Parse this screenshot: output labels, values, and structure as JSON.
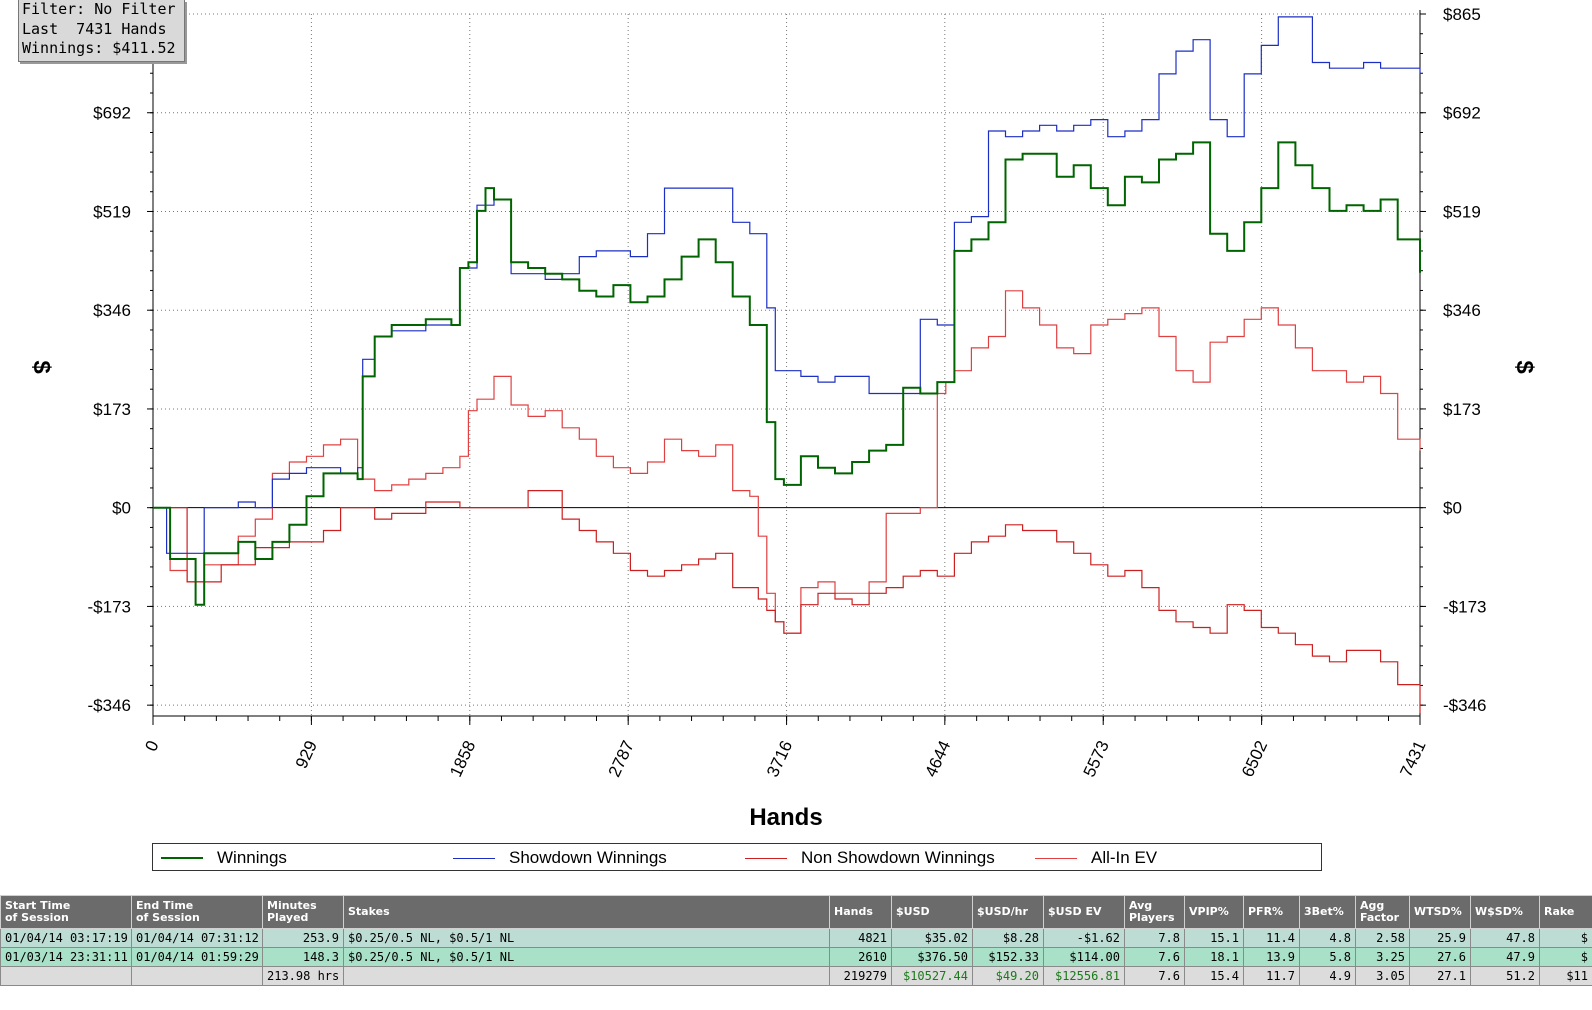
{
  "info_box": {
    "line1": "Filter: No Filter",
    "line2": "Last  7431 Hands",
    "line3": "Winnings: $411.52"
  },
  "chart_data": {
    "type": "line",
    "xlabel": "Hands",
    "ylabel": "$",
    "xlim": [
      0,
      7431
    ],
    "ylim": [
      -365,
      865
    ],
    "x_ticks": [
      "0",
      "929",
      "1858",
      "2787",
      "3716",
      "4644",
      "5573",
      "6502",
      "7431"
    ],
    "y_ticks": [
      {
        "value": 865,
        "label": "$865"
      },
      {
        "value": 692,
        "label": "$692"
      },
      {
        "value": 519,
        "label": "$519"
      },
      {
        "value": 346,
        "label": "$346"
      },
      {
        "value": 173,
        "label": "$173"
      },
      {
        "value": 0,
        "label": "$0"
      },
      {
        "value": -173,
        "label": "-$173"
      },
      {
        "value": -346,
        "label": "-$346"
      }
    ],
    "grid": true,
    "legend_position": "bottom",
    "series": [
      {
        "name": "Winnings",
        "color": "#006400",
        "x": [
          0,
          100,
          250,
          300,
          500,
          600,
          700,
          800,
          900,
          1000,
          1100,
          1200,
          1230,
          1300,
          1400,
          1600,
          1750,
          1800,
          1850,
          1900,
          1950,
          2000,
          2100,
          2200,
          2300,
          2400,
          2500,
          2600,
          2700,
          2800,
          2900,
          3000,
          3100,
          3200,
          3300,
          3400,
          3500,
          3600,
          3650,
          3700,
          3800,
          3900,
          4000,
          4100,
          4200,
          4300,
          4400,
          4500,
          4600,
          4700,
          4800,
          4900,
          5000,
          5100,
          5200,
          5300,
          5400,
          5500,
          5600,
          5700,
          5800,
          5900,
          6000,
          6100,
          6200,
          6300,
          6400,
          6500,
          6600,
          6700,
          6800,
          6900,
          7000,
          7100,
          7200,
          7300,
          7431
        ],
        "y": [
          0,
          -90,
          -170,
          -80,
          -60,
          -90,
          -60,
          -30,
          20,
          60,
          60,
          50,
          230,
          300,
          320,
          330,
          320,
          420,
          430,
          520,
          560,
          540,
          430,
          420,
          410,
          400,
          380,
          370,
          390,
          360,
          370,
          400,
          440,
          470,
          430,
          370,
          320,
          150,
          50,
          40,
          90,
          70,
          60,
          80,
          100,
          110,
          210,
          200,
          220,
          450,
          470,
          500,
          610,
          620,
          620,
          580,
          600,
          560,
          530,
          580,
          570,
          610,
          620,
          640,
          480,
          450,
          500,
          560,
          640,
          600,
          560,
          520,
          530,
          520,
          540,
          470,
          411.52
        ]
      },
      {
        "name": "Showdown Winnings",
        "color": "#1c2fc4",
        "x": [
          0,
          80,
          200,
          300,
          500,
          600,
          700,
          800,
          900,
          1000,
          1100,
          1200,
          1230,
          1300,
          1400,
          1600,
          1750,
          1800,
          1900,
          2000,
          2100,
          2200,
          2300,
          2400,
          2500,
          2600,
          2700,
          2800,
          2900,
          3000,
          3100,
          3200,
          3300,
          3400,
          3500,
          3600,
          3650,
          3700,
          3800,
          3900,
          4000,
          4100,
          4200,
          4300,
          4400,
          4500,
          4600,
          4700,
          4800,
          4900,
          5000,
          5100,
          5200,
          5300,
          5400,
          5500,
          5600,
          5700,
          5800,
          5900,
          6000,
          6100,
          6200,
          6300,
          6400,
          6500,
          6600,
          6700,
          6800,
          6900,
          7000,
          7100,
          7200,
          7300,
          7431
        ],
        "y": [
          0,
          -80,
          -80,
          0,
          10,
          0,
          50,
          60,
          70,
          70,
          60,
          70,
          260,
          300,
          310,
          320,
          320,
          420,
          530,
          540,
          410,
          410,
          400,
          410,
          440,
          450,
          450,
          440,
          480,
          560,
          560,
          560,
          560,
          500,
          480,
          350,
          240,
          240,
          230,
          220,
          230,
          230,
          200,
          200,
          200,
          330,
          320,
          500,
          510,
          660,
          650,
          660,
          670,
          660,
          670,
          680,
          650,
          660,
          680,
          760,
          800,
          820,
          680,
          650,
          760,
          810,
          860,
          860,
          780,
          770,
          770,
          780,
          770,
          770,
          760
        ]
      },
      {
        "name": "Non Showdown Winnings",
        "color": "#cc2020",
        "x": [
          0,
          200,
          400,
          600,
          800,
          1000,
          1100,
          1200,
          1300,
          1400,
          1600,
          1800,
          2000,
          2200,
          2300,
          2400,
          2500,
          2600,
          2700,
          2800,
          2900,
          3000,
          3100,
          3200,
          3300,
          3400,
          3500,
          3550,
          3600,
          3650,
          3700,
          3800,
          3900,
          4000,
          4100,
          4200,
          4300,
          4400,
          4500,
          4600,
          4700,
          4800,
          4900,
          5000,
          5100,
          5200,
          5300,
          5400,
          5500,
          5600,
          5700,
          5800,
          5900,
          6000,
          6100,
          6200,
          6300,
          6400,
          6500,
          6600,
          6700,
          6800,
          6900,
          7000,
          7100,
          7200,
          7300,
          7431
        ],
        "y": [
          0,
          -130,
          -100,
          -70,
          -60,
          -40,
          0,
          0,
          -20,
          -10,
          10,
          0,
          0,
          30,
          30,
          -20,
          -40,
          -60,
          -80,
          -110,
          -120,
          -110,
          -100,
          -90,
          -80,
          -140,
          -140,
          -160,
          -180,
          -200,
          -220,
          -170,
          -150,
          -160,
          -170,
          -150,
          -140,
          -120,
          -110,
          -120,
          -80,
          -60,
          -50,
          -30,
          -40,
          -40,
          -60,
          -80,
          -100,
          -120,
          -110,
          -140,
          -180,
          -200,
          -210,
          -220,
          -170,
          -180,
          -210,
          -220,
          -240,
          -260,
          -270,
          -250,
          -250,
          -270,
          -310,
          -360
        ]
      },
      {
        "name": "All-In EV",
        "color": "#e04040",
        "x": [
          0,
          100,
          200,
          300,
          500,
          600,
          700,
          800,
          900,
          1000,
          1100,
          1200,
          1300,
          1400,
          1500,
          1600,
          1700,
          1800,
          1850,
          1900,
          2000,
          2100,
          2200,
          2300,
          2400,
          2500,
          2600,
          2700,
          2800,
          2900,
          3000,
          3100,
          3200,
          3300,
          3400,
          3500,
          3550,
          3600,
          3650,
          3700,
          3800,
          3900,
          4000,
          4100,
          4200,
          4300,
          4400,
          4500,
          4600,
          4650,
          4700,
          4800,
          4900,
          5000,
          5100,
          5200,
          5300,
          5400,
          5500,
          5600,
          5700,
          5800,
          5900,
          6000,
          6100,
          6200,
          6300,
          6400,
          6500,
          6600,
          6700,
          6800,
          6900,
          7000,
          7100,
          7200,
          7300,
          7431
        ],
        "y": [
          0,
          -110,
          -130,
          -100,
          -50,
          -20,
          60,
          80,
          90,
          110,
          120,
          50,
          30,
          40,
          50,
          60,
          70,
          90,
          170,
          190,
          230,
          180,
          160,
          170,
          140,
          120,
          90,
          70,
          60,
          80,
          120,
          100,
          90,
          110,
          30,
          20,
          -50,
          -150,
          -200,
          -220,
          -140,
          -130,
          -150,
          -150,
          -130,
          -10,
          -10,
          0,
          200,
          220,
          240,
          280,
          300,
          380,
          350,
          320,
          280,
          270,
          320,
          330,
          340,
          350,
          300,
          240,
          220,
          290,
          300,
          330,
          350,
          320,
          280,
          240,
          240,
          220,
          230,
          200,
          120,
          100
        ]
      }
    ]
  },
  "legend": {
    "items": [
      {
        "label": "Winnings",
        "color": "#006400"
      },
      {
        "label": "Showdown Winnings",
        "color": "#1c2fc4"
      },
      {
        "label": "Non Showdown Winnings",
        "color": "#cc2020"
      },
      {
        "label": "All-In EV",
        "color": "#e04040"
      }
    ]
  },
  "table": {
    "headers": [
      "Start Time of Session",
      "End Time of Session",
      "Minutes Played",
      "Stakes",
      "Hands",
      "$USD",
      "$USD/hr",
      "$USD EV",
      "Avg Players",
      "VPIP%",
      "PFR%",
      "3Bet%",
      "Agg Factor",
      "WTSD%",
      "W$SD%",
      "Rake"
    ],
    "header_lines": [
      [
        "Start Time",
        "of Session"
      ],
      [
        "End Time",
        "of Session"
      ],
      [
        "Minutes",
        "Played"
      ],
      [
        "Stakes",
        ""
      ],
      [
        "Hands",
        ""
      ],
      [
        "$USD",
        ""
      ],
      [
        "$USD/hr",
        ""
      ],
      [
        "$USD EV",
        ""
      ],
      [
        "Avg",
        "Players"
      ],
      [
        "VPIP%",
        ""
      ],
      [
        "PFR%",
        ""
      ],
      [
        "3Bet%",
        ""
      ],
      [
        "Agg",
        "Factor"
      ],
      [
        "WTSD%",
        ""
      ],
      [
        "W$SD%",
        ""
      ],
      [
        "Rake",
        ""
      ]
    ],
    "rows": [
      [
        "01/04/14 03:17:19",
        "01/04/14 07:31:12",
        "253.9",
        "$0.25/0.5 NL, $0.5/1 NL",
        "4821",
        "$35.02",
        "$8.28",
        "-$1.62",
        "7.8",
        "15.1",
        "11.4",
        "4.8",
        "2.58",
        "25.9",
        "47.8",
        "$"
      ],
      [
        "01/03/14 23:31:11",
        "01/04/14 01:59:29",
        "148.3",
        "$0.25/0.5 NL, $0.5/1 NL",
        "2610",
        "$376.50",
        "$152.33",
        "$114.00",
        "7.6",
        "18.1",
        "13.9",
        "5.8",
        "3.25",
        "27.6",
        "47.9",
        "$"
      ]
    ],
    "total": [
      "",
      "",
      "213.98 hrs",
      "",
      "219279",
      "$10527.44",
      "$49.20",
      "$12556.81",
      "7.6",
      "15.4",
      "11.7",
      "4.9",
      "3.05",
      "27.1",
      "51.2",
      "$11"
    ]
  }
}
